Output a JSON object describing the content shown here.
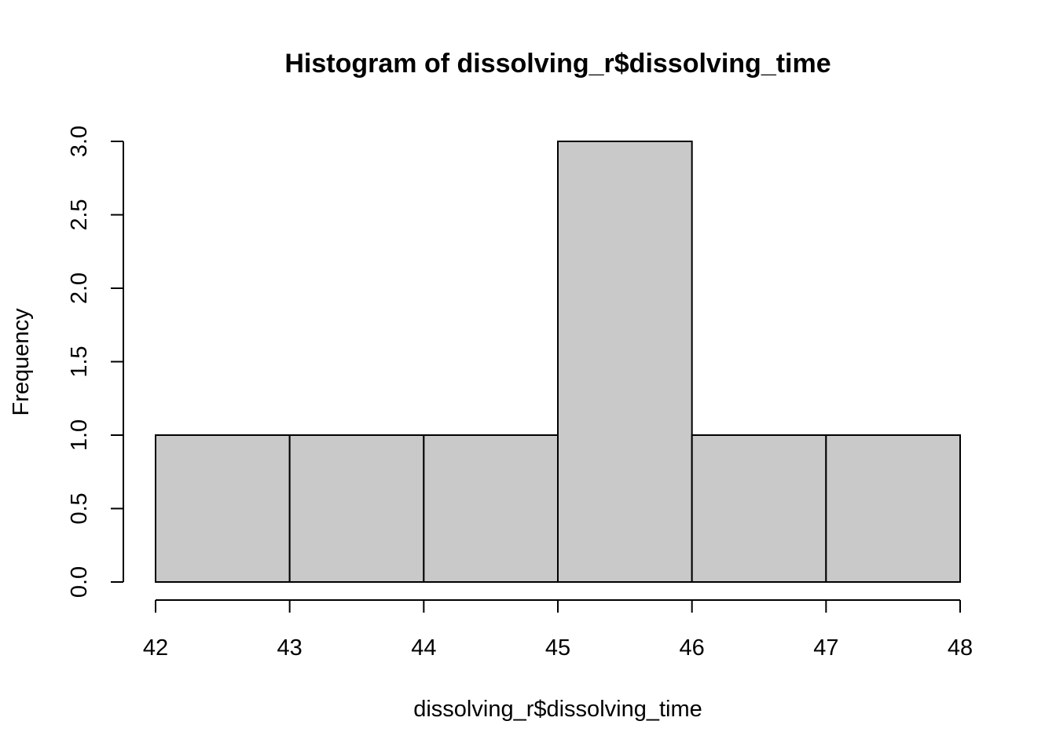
{
  "chart_data": {
    "type": "bar",
    "subtype": "histogram",
    "title": "Histogram of dissolving_r$dissolving_time",
    "xlabel": "dissolving_r$dissolving_time",
    "ylabel": "Frequency",
    "bins": [
      {
        "start": 42,
        "end": 43,
        "count": 1
      },
      {
        "start": 43,
        "end": 44,
        "count": 1
      },
      {
        "start": 44,
        "end": 45,
        "count": 1
      },
      {
        "start": 45,
        "end": 46,
        "count": 3
      },
      {
        "start": 46,
        "end": 47,
        "count": 1
      },
      {
        "start": 47,
        "end": 48,
        "count": 1
      }
    ],
    "xlim": [
      42,
      48
    ],
    "ylim": [
      0,
      3
    ],
    "x_ticks": [
      42,
      43,
      44,
      45,
      46,
      47,
      48
    ],
    "x_tick_labels": [
      "42",
      "43",
      "44",
      "45",
      "46",
      "47",
      "48"
    ],
    "y_ticks": [
      0,
      0.5,
      1,
      1.5,
      2,
      2.5,
      3
    ],
    "y_tick_labels": [
      "0.0",
      "0.5",
      "1.0",
      "1.5",
      "2.0",
      "2.5",
      "3.0"
    ],
    "bar_fill": "#c9c9c9",
    "bar_stroke": "#000000",
    "grid": false,
    "legend": "none"
  }
}
